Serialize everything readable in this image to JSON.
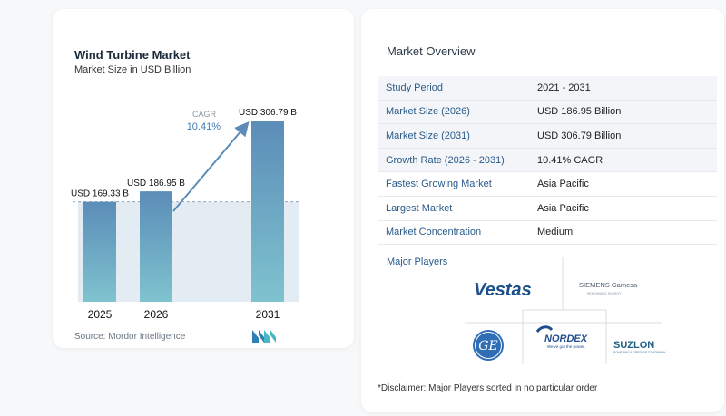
{
  "chart": {
    "title": "Wind Turbine Market",
    "subtitle": "Market Size in USD Billion",
    "source": "Source:  Mordor Intelligence",
    "cagr_label": "CAGR",
    "cagr_value": "10.41%"
  },
  "chart_data": {
    "type": "bar",
    "categories": [
      "2025",
      "2026",
      "2031"
    ],
    "values": [
      169.33,
      186.95,
      306.79
    ],
    "data_labels": [
      "USD 169.33 B",
      "USD 186.95 B",
      "USD 306.79 B"
    ],
    "title": "Wind Turbine Market",
    "subtitle": "Market Size in USD Billion",
    "xlabel": "",
    "ylabel": "",
    "ylim": [
      0,
      320
    ],
    "grid": false,
    "reference_line_value": 169.33
  },
  "overview": {
    "title": "Market Overview",
    "rows": [
      {
        "label": "Study Period",
        "value": "2021 - 2031"
      },
      {
        "label": "Market Size (2026)",
        "value": "USD 186.95 Billion"
      },
      {
        "label": "Market Size (2031)",
        "value": "USD 306.79 Billion"
      },
      {
        "label": "Growth Rate (2026 - 2031)",
        "value": "10.41% CAGR"
      },
      {
        "label": "Fastest Growing Market",
        "value": "Asia Pacific"
      },
      {
        "label": "Largest Market",
        "value": "Asia Pacific"
      },
      {
        "label": "Market Concentration",
        "value": "Medium"
      }
    ]
  },
  "players": {
    "title": "Major Players",
    "vestas": "Vestas",
    "siemens": "SIEMENS Gamesa",
    "siemens_sub": "RENEWABLE ENERGY",
    "ge": "GE",
    "nordex": "NORDEX",
    "nordex_sub": "We've got the power.",
    "suzlon": "SUZLON",
    "suzlon_sub": "POWERING A GREENER TOMORROW"
  },
  "disclaimer": "*Disclaimer: Major Players sorted in no particular order",
  "colors": {
    "bar_top": "#5b8db8",
    "bar_bottom": "#7fc3cf",
    "area": "#e3ebf3",
    "arrow": "#5b8db8",
    "label_blue": "#2a5b8a"
  }
}
